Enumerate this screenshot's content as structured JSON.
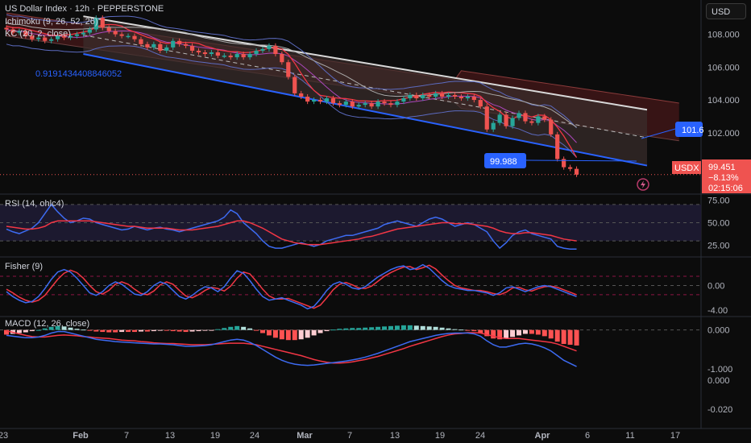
{
  "header": {
    "symbol_line": "US Dollar Index · 12h · PEPPERSTONE",
    "ichimoku": "Ichimoku (9, 26, 52, 26)",
    "kc": "KC (20, 2, close)"
  },
  "currency_button": "USD",
  "annotations": {
    "fib_value": "0.9191434408846052",
    "channel_low_tag": "99.988",
    "channel_high_tag": "101.6"
  },
  "price_badge": {
    "symbol": "USDX",
    "price": "99.451",
    "change": "−8.13%",
    "countdown": "02:15:06"
  },
  "colors": {
    "up": "#26a69a",
    "down": "#ef5350",
    "channel": "#2962ff",
    "rsi": "#3d6bf2",
    "signal": "#f23645",
    "cloud_red": "#5b1c1e",
    "cloud_grey": "#2a2f38"
  },
  "indicators": {
    "rsi_title": "RSI (14, ohlc4)",
    "fisher_title": "Fisher (9)",
    "macd_title": "MACD (12, 26, close)"
  },
  "chart_data": [
    {
      "type": "line",
      "title": "US Dollar Index · 12h · PEPPERSTONE",
      "ylim": [
        98.8,
        109.6
      ],
      "yticks": [
        "108.000",
        "106.000",
        "104.000",
        "102.000",
        "100.000"
      ],
      "series": [
        {
          "name": "US Dollar Index",
          "values": [
            108.3,
            108.1,
            108.2,
            107.9,
            107.7,
            107.8,
            107.6,
            107.7,
            107.9,
            107.8,
            107.9,
            108.0,
            108.1,
            108.3,
            109.0,
            108.4,
            108.2,
            108.0,
            107.9,
            107.9,
            107.7,
            107.4,
            107.2,
            107.4,
            107.0,
            107.2,
            107.6,
            107.4,
            107.3,
            107.0,
            106.9,
            106.8,
            106.9,
            106.7,
            106.7,
            106.6,
            106.8,
            106.6,
            106.8,
            107.0,
            107.1,
            107.3,
            106.8,
            106.3,
            105.4,
            104.4,
            104.2,
            103.9,
            104.0,
            103.9,
            104.1,
            103.8,
            103.7,
            103.9,
            103.6,
            103.7,
            103.8,
            103.6,
            103.9,
            103.8,
            103.7,
            103.9,
            104.1,
            104.3,
            104.1,
            104.3,
            104.2,
            104.4,
            104.2,
            104.3,
            104.2,
            104.1,
            104.2,
            104.0,
            103.6,
            102.2,
            102.6,
            103.1,
            102.4,
            102.9,
            103.2,
            102.7,
            102.6,
            103.0,
            102.8,
            101.9,
            100.4,
            99.9,
            99.8,
            99.45
          ]
        }
      ]
    },
    {
      "type": "line",
      "title": "RSI (14, ohlc4)",
      "ylim": [
        15,
        77
      ],
      "yticks": [
        "75.00",
        "50.00",
        "25.00"
      ],
      "series": [
        {
          "name": "RSI",
          "values": [
            43,
            40,
            38,
            41,
            44,
            50,
            60,
            70,
            62,
            55,
            50,
            52,
            55,
            54,
            50,
            48,
            46,
            44,
            42,
            43,
            46,
            44,
            42,
            44,
            45,
            43,
            42,
            40,
            42,
            44,
            46,
            48,
            50,
            52,
            56,
            64,
            60,
            50,
            44,
            38,
            30,
            24,
            22,
            22,
            24,
            26,
            28,
            26,
            24,
            26,
            30,
            32,
            34,
            36,
            36,
            38,
            40,
            42,
            44,
            48,
            50,
            52,
            50,
            48,
            46,
            50,
            54,
            56,
            54,
            50,
            46,
            48,
            50,
            48,
            44,
            40,
            30,
            22,
            28,
            36,
            40,
            42,
            38,
            36,
            34,
            32,
            24,
            22,
            21,
            21
          ]
        },
        {
          "name": "Signal",
          "values": [
            46,
            45,
            44,
            43,
            43,
            44,
            46,
            50,
            52,
            52,
            52,
            52,
            52,
            52,
            51,
            50,
            49,
            48,
            47,
            46,
            46,
            45,
            44,
            44,
            44,
            44,
            43,
            42,
            42,
            42,
            43,
            44,
            45,
            46,
            48,
            50,
            52,
            52,
            50,
            47,
            44,
            40,
            36,
            32,
            30,
            28,
            27,
            26,
            26,
            26,
            27,
            28,
            29,
            30,
            31,
            32,
            34,
            35,
            37,
            39,
            41,
            43,
            44,
            45,
            46,
            47,
            48,
            49,
            50,
            50,
            49,
            49,
            49,
            48,
            47,
            46,
            44,
            41,
            39,
            38,
            38,
            39,
            39,
            38,
            37,
            36,
            34,
            32,
            31,
            30
          ]
        }
      ]
    },
    {
      "type": "line",
      "title": "Fisher (9)",
      "ylim": [
        -4.4,
        4.0
      ],
      "yticks": [
        "0.00",
        "-4.00"
      ],
      "series": [
        {
          "name": "Fisher",
          "values": [
            -1.0,
            -1.8,
            -2.4,
            -2.8,
            -2.6,
            -1.8,
            -0.5,
            1.0,
            2.2,
            2.6,
            2.2,
            1.2,
            0.0,
            -1.2,
            -1.6,
            -1.0,
            0.0,
            0.6,
            0.2,
            -0.6,
            -1.4,
            -1.6,
            -1.0,
            0.0,
            0.6,
            0.2,
            -0.8,
            -1.8,
            -2.2,
            -1.6,
            -0.8,
            -0.2,
            -0.4,
            -1.0,
            -0.2,
            1.2,
            2.4,
            2.0,
            0.8,
            -0.6,
            -1.8,
            -2.4,
            -2.2,
            -2.0,
            -2.4,
            -2.8,
            -3.2,
            -3.8,
            -3.4,
            -2.2,
            -0.8,
            0.2,
            0.6,
            0.2,
            -0.4,
            -0.6,
            -0.2,
            0.6,
            1.4,
            2.0,
            2.6,
            3.0,
            3.2,
            2.6,
            2.8,
            3.4,
            2.8,
            1.8,
            0.8,
            0.0,
            -0.4,
            -0.6,
            -0.8,
            -0.8,
            -1.0,
            -1.2,
            -1.6,
            -1.2,
            -0.4,
            -0.2,
            -0.6,
            -1.0,
            -0.6,
            -0.2,
            0.0,
            -0.2,
            -0.6,
            -1.0,
            -1.4,
            -1.8
          ]
        },
        {
          "name": "Trigger",
          "values": [
            -0.6,
            -1.2,
            -1.9,
            -2.4,
            -2.7,
            -2.4,
            -1.6,
            -0.3,
            1.0,
            2.0,
            2.5,
            2.1,
            1.2,
            0.0,
            -1.0,
            -1.4,
            -0.8,
            0.2,
            0.6,
            0.2,
            -0.6,
            -1.3,
            -1.5,
            -0.9,
            0.1,
            0.6,
            0.2,
            -0.8,
            -1.7,
            -2.0,
            -1.5,
            -0.8,
            -0.3,
            -0.5,
            -0.9,
            -0.1,
            1.2,
            2.2,
            1.9,
            0.7,
            -0.6,
            -1.7,
            -2.2,
            -2.2,
            -2.1,
            -2.5,
            -2.9,
            -3.3,
            -3.7,
            -3.2,
            -2.0,
            -0.7,
            0.2,
            0.5,
            0.1,
            -0.4,
            -0.5,
            -0.1,
            0.7,
            1.5,
            2.1,
            2.6,
            3.0,
            3.1,
            2.6,
            2.9,
            3.3,
            2.7,
            1.7,
            0.8,
            0.0,
            -0.4,
            -0.6,
            -0.8,
            -0.8,
            -1.0,
            -1.3,
            -1.5,
            -1.1,
            -0.4,
            -0.3,
            -0.7,
            -0.9,
            -0.5,
            -0.2,
            -0.1,
            -0.3,
            -0.7,
            -1.1,
            -1.5
          ]
        }
      ]
    },
    {
      "type": "bar",
      "title": "MACD (12, 26, close)",
      "ylim": [
        -1.25,
        0.2
      ],
      "yticks": [
        "0.000",
        "-1.000"
      ],
      "series": [
        {
          "name": "Histogram",
          "values": [
            -0.12,
            -0.1,
            -0.08,
            -0.06,
            -0.03,
            0.0,
            0.04,
            0.08,
            0.1,
            0.09,
            0.06,
            0.03,
            0.01,
            -0.02,
            -0.04,
            -0.05,
            -0.06,
            -0.06,
            -0.05,
            -0.05,
            -0.05,
            -0.04,
            -0.04,
            -0.03,
            -0.02,
            -0.02,
            -0.03,
            -0.04,
            -0.05,
            -0.04,
            -0.03,
            -0.02,
            -0.01,
            0.02,
            0.05,
            0.08,
            0.1,
            0.08,
            0.04,
            -0.02,
            -0.08,
            -0.14,
            -0.2,
            -0.24,
            -0.26,
            -0.26,
            -0.24,
            -0.2,
            -0.14,
            -0.08,
            -0.03,
            0.01,
            0.03,
            0.04,
            0.05,
            0.05,
            0.06,
            0.07,
            0.08,
            0.09,
            0.1,
            0.11,
            0.12,
            0.12,
            0.11,
            0.1,
            0.09,
            0.08,
            0.06,
            0.04,
            0.02,
            0.01,
            -0.01,
            -0.03,
            -0.08,
            -0.16,
            -0.22,
            -0.24,
            -0.22,
            -0.18,
            -0.14,
            -0.1,
            -0.1,
            -0.12,
            -0.16,
            -0.22,
            -0.3,
            -0.36,
            -0.38,
            -0.4
          ]
        },
        {
          "name": "MACD",
          "values": [
            -0.14,
            -0.16,
            -0.18,
            -0.2,
            -0.2,
            -0.18,
            -0.14,
            -0.08,
            -0.04,
            -0.04,
            -0.08,
            -0.12,
            -0.16,
            -0.2,
            -0.24,
            -0.26,
            -0.28,
            -0.3,
            -0.31,
            -0.32,
            -0.33,
            -0.34,
            -0.35,
            -0.36,
            -0.36,
            -0.37,
            -0.38,
            -0.4,
            -0.42,
            -0.42,
            -0.41,
            -0.4,
            -0.38,
            -0.34,
            -0.3,
            -0.26,
            -0.24,
            -0.26,
            -0.32,
            -0.4,
            -0.5,
            -0.6,
            -0.7,
            -0.78,
            -0.84,
            -0.88,
            -0.9,
            -0.91,
            -0.9,
            -0.88,
            -0.86,
            -0.84,
            -0.82,
            -0.8,
            -0.77,
            -0.74,
            -0.7,
            -0.65,
            -0.6,
            -0.54,
            -0.48,
            -0.42,
            -0.36,
            -0.3,
            -0.26,
            -0.22,
            -0.18,
            -0.14,
            -0.11,
            -0.09,
            -0.08,
            -0.08,
            -0.08,
            -0.1,
            -0.16,
            -0.28,
            -0.38,
            -0.44,
            -0.44,
            -0.4,
            -0.36,
            -0.34,
            -0.36,
            -0.4,
            -0.46,
            -0.54,
            -0.66,
            -0.78,
            -0.86,
            -0.94
          ]
        },
        {
          "name": "Signal",
          "values": [
            -0.02,
            -0.06,
            -0.1,
            -0.14,
            -0.17,
            -0.18,
            -0.18,
            -0.16,
            -0.14,
            -0.13,
            -0.14,
            -0.15,
            -0.17,
            -0.18,
            -0.2,
            -0.21,
            -0.22,
            -0.24,
            -0.26,
            -0.27,
            -0.28,
            -0.3,
            -0.31,
            -0.33,
            -0.34,
            -0.35,
            -0.35,
            -0.36,
            -0.37,
            -0.38,
            -0.38,
            -0.38,
            -0.37,
            -0.36,
            -0.35,
            -0.34,
            -0.34,
            -0.34,
            -0.36,
            -0.38,
            -0.42,
            -0.46,
            -0.5,
            -0.54,
            -0.58,
            -0.62,
            -0.66,
            -0.71,
            -0.76,
            -0.8,
            -0.83,
            -0.85,
            -0.85,
            -0.84,
            -0.82,
            -0.79,
            -0.76,
            -0.72,
            -0.68,
            -0.63,
            -0.58,
            -0.53,
            -0.48,
            -0.42,
            -0.37,
            -0.32,
            -0.27,
            -0.22,
            -0.17,
            -0.13,
            -0.1,
            -0.09,
            -0.07,
            -0.07,
            -0.08,
            -0.12,
            -0.16,
            -0.2,
            -0.22,
            -0.22,
            -0.22,
            -0.24,
            -0.26,
            -0.28,
            -0.3,
            -0.32,
            -0.36,
            -0.42,
            -0.48,
            -0.54
          ]
        }
      ]
    }
  ],
  "x_axis": {
    "labels": [
      "23",
      "Feb",
      "7",
      "13",
      "19",
      "24",
      "Mar",
      "7",
      "13",
      "19",
      "24",
      "Apr",
      "6",
      "11",
      "17"
    ]
  },
  "extra_axis_ticks": [
    "0.000",
    "-0.020"
  ]
}
